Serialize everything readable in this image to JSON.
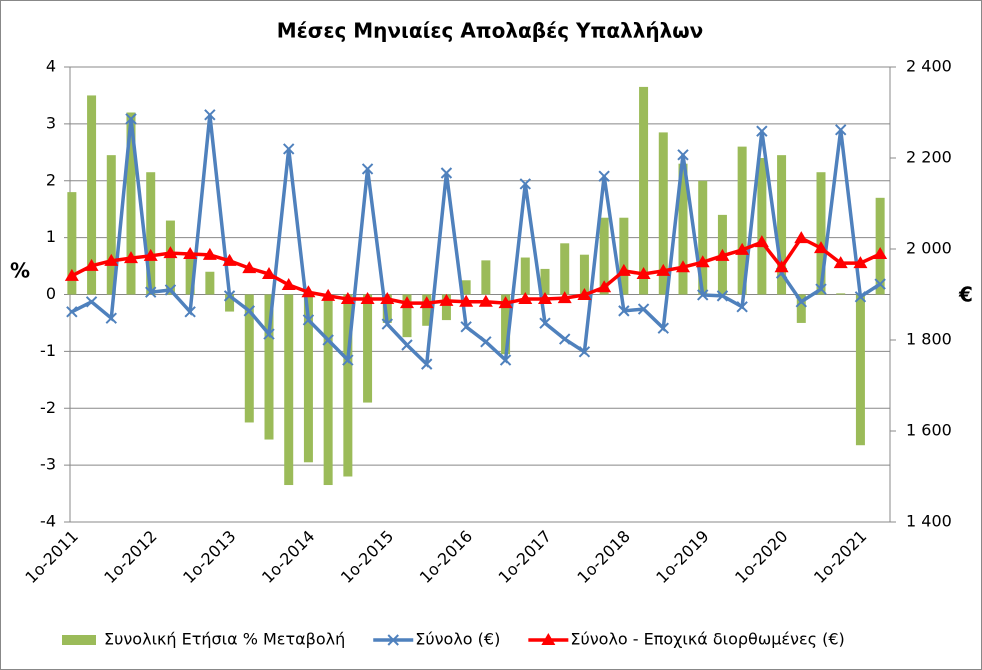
{
  "chart_data": {
    "type": "bar_line",
    "title": "Μέσες Μηνιαίες Απολαβές Υπαλλήλων",
    "ylabel": "%",
    "y2label": "€",
    "categories": [
      "1ο-2011",
      null,
      null,
      null,
      "1ο-2012",
      null,
      null,
      null,
      "1ο-2013",
      null,
      null,
      null,
      "1ο-2014",
      null,
      null,
      null,
      "1ο-2015",
      null,
      null,
      null,
      "1ο-2016",
      null,
      null,
      null,
      "1ο-2017",
      null,
      null,
      null,
      "1ο-2018",
      null,
      null,
      null,
      "1ο-2019",
      null,
      null,
      null,
      "1ο-2020",
      null,
      null,
      null,
      "1ο-2021",
      null
    ],
    "ylim": [
      -4,
      4
    ],
    "yticks": [
      -4,
      -3,
      -2,
      -1,
      0,
      1,
      2,
      3,
      4
    ],
    "y2lim": [
      1400,
      2400
    ],
    "y2ticks": [
      {
        "value": 1400,
        "label": "1 400"
      },
      {
        "value": 1600,
        "label": "1 600"
      },
      {
        "value": 1800,
        "label": "1 800"
      },
      {
        "value": 2000,
        "label": "2 000"
      },
      {
        "value": 2200,
        "label": "2 200"
      },
      {
        "value": 2400,
        "label": "2 400"
      }
    ],
    "grid": true,
    "series": [
      {
        "name": "Συνολική Ετήσια % Μεταβολή",
        "type": "bar",
        "color": "#9bbb59",
        "values": [
          1.8,
          3.5,
          2.45,
          3.2,
          2.15,
          1.3,
          0.7,
          0.4,
          -0.3,
          -2.25,
          -2.55,
          -3.35,
          -2.95,
          -3.35,
          -3.2,
          -1.9,
          -0.5,
          -0.75,
          -0.55,
          -0.45,
          0.25,
          0.6,
          -1.05,
          0.65,
          0.45,
          0.9,
          0.7,
          1.35,
          1.35,
          3.65,
          2.85,
          2.3,
          2.0,
          1.4,
          2.6,
          2.4,
          2.45,
          -0.5,
          2.15,
          0.02,
          -2.65,
          1.7
        ]
      },
      {
        "name": "Σύνολο (€)",
        "type": "line",
        "axis": "y2",
        "color": "#4f81bd",
        "values": [
          1862,
          1884,
          1848,
          2286,
          1905,
          1910,
          1862,
          2295,
          1897,
          1864,
          1813,
          2220,
          1844,
          1800,
          1756,
          2176,
          1835,
          1789,
          1747,
          2167,
          1829,
          1796,
          1756,
          2143,
          1837,
          1802,
          1774,
          2160,
          1864,
          1868,
          1826,
          2207,
          1899,
          1897,
          1873,
          2259,
          1947,
          1884,
          1912,
          2262,
          1895,
          1923
        ]
      },
      {
        "name": "Σύνολο - Εποχικά διορθωμένες (€)",
        "type": "line",
        "axis": "y2",
        "color": "#ff0000",
        "values": [
          1941,
          1963,
          1974,
          1980,
          1985,
          1991,
          1989,
          1987,
          1974,
          1958,
          1945,
          1921,
          1905,
          1897,
          1890,
          1890,
          1890,
          1881,
          1881,
          1886,
          1884,
          1884,
          1881,
          1890,
          1890,
          1892,
          1899,
          1916,
          1952,
          1945,
          1952,
          1960,
          1971,
          1985,
          1998,
          2015,
          1960,
          2024,
          2002,
          1969,
          1969,
          1989
        ]
      }
    ]
  }
}
